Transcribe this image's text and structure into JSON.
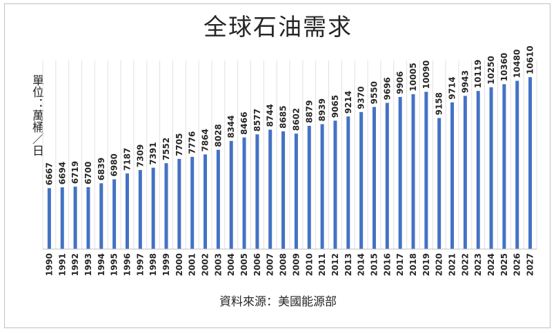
{
  "chart_data": {
    "type": "bar",
    "title": "全球石油需求",
    "ylabel": "單位：萬桶／日",
    "xlabel": "",
    "source": "資料來源：美國能源部",
    "categories": [
      "1990",
      "1991",
      "1992",
      "1993",
      "1994",
      "1995",
      "1996",
      "1997",
      "1998",
      "1999",
      "2000",
      "2001",
      "2002",
      "2003",
      "2004",
      "2005",
      "2006",
      "2007",
      "2008",
      "2009",
      "2010",
      "2011",
      "2012",
      "2013",
      "2014",
      "2015",
      "2016",
      "2017",
      "2018",
      "2019",
      "2020",
      "2021",
      "2022",
      "2023",
      "2024",
      "2025",
      "2026",
      "2027"
    ],
    "values": [
      6667,
      6694,
      6719,
      6700,
      6839,
      6980,
      7187,
      7309,
      7391,
      7552,
      7705,
      7776,
      7864,
      8028,
      8344,
      8466,
      8577,
      8744,
      8685,
      8602,
      8879,
      8939,
      9065,
      9214,
      9370,
      9550,
      9696,
      9906,
      10005,
      10090,
      9158,
      9714,
      9943,
      10119,
      10250,
      10360,
      10480,
      10610
    ],
    "ylim": [
      4500,
      11200
    ],
    "grid": true,
    "bar_color": "#4472c4",
    "grid_color": "#e0e0e0"
  }
}
